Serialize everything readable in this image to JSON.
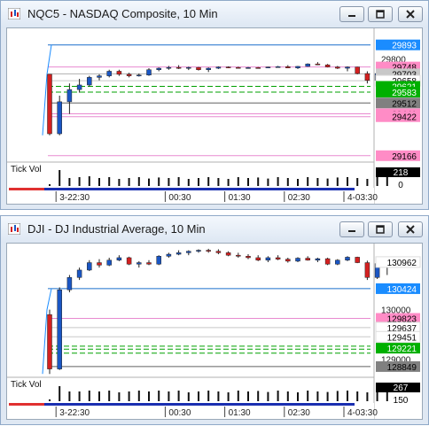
{
  "colors": {
    "candle_up": "#1a56c4",
    "candle_down": "#d42020",
    "highlight_blue": "#1a8cff",
    "highlight_pink": "#ff8cc6",
    "highlight_gray": "#c8c8c8",
    "highlight_green": "#00b000",
    "highlight_darkgray": "#808080"
  },
  "window_buttons": {
    "minimize": "minimize-icon",
    "maximize": "maximize-icon",
    "close": "close-icon"
  },
  "charts": [
    {
      "title": "NQC5 - NASDAQ Composite, 10 Min",
      "price_scale": {
        "min": 29130,
        "max": 29990
      },
      "axis_labels": [
        {
          "value": 29800,
          "text": "29800"
        }
      ],
      "price_tags": [
        {
          "value": 29893,
          "text": "29893",
          "bg": "#1a8cff",
          "fg": "#ffffff"
        },
        {
          "value": 29748,
          "text": "29748",
          "bg": "#ff8cc6",
          "fg": "#000000"
        },
        {
          "value": 29703,
          "text": "29703",
          "bg": "#c8c8c8",
          "fg": "#000000"
        },
        {
          "value": 29658,
          "text": "29658",
          "bg": "#ffffff",
          "fg": "#000000"
        },
        {
          "value": 29621,
          "text": "29621",
          "bg": "#00b000",
          "fg": "#ffffff"
        },
        {
          "value": 29583,
          "text": "29583",
          "bg": "#00b000",
          "fg": "#ffffff"
        },
        {
          "value": 29512,
          "text": "29512",
          "bg": "#808080",
          "fg": "#000000"
        },
        {
          "value": 29441,
          "text": "29441",
          "bg": "#ff8cc6",
          "fg": "#000000"
        },
        {
          "value": 29422,
          "text": "29422",
          "bg": "#ff8cc6",
          "fg": "#000000"
        },
        {
          "value": 29166,
          "text": "29166",
          "bg": "#ff8cc6",
          "fg": "#000000"
        }
      ],
      "h_lines": [
        {
          "value": 29893,
          "color": "#1a6fcc"
        },
        {
          "value": 29748,
          "color": "#e88ad0"
        },
        {
          "value": 29703,
          "color": "#b0b0b0"
        },
        {
          "value": 29658,
          "color": "#c8c8c8"
        },
        {
          "value": 29621,
          "color": "#00a000",
          "dash": true
        },
        {
          "value": 29583,
          "color": "#00a000",
          "dash": true
        },
        {
          "value": 29512,
          "color": "#606060"
        },
        {
          "value": 29441,
          "color": "#e88ad0"
        },
        {
          "value": 29422,
          "color": "#e88ad0"
        },
        {
          "value": 29166,
          "color": "#e88ad0"
        }
      ],
      "candles": [
        [
          29700,
          29700,
          29300,
          29310
        ],
        [
          29310,
          29560,
          29300,
          29520
        ],
        [
          29520,
          29640,
          29440,
          29600
        ],
        [
          29600,
          29670,
          29580,
          29630
        ],
        [
          29630,
          29690,
          29620,
          29680
        ],
        [
          29680,
          29700,
          29660,
          29690
        ],
        [
          29690,
          29730,
          29680,
          29720
        ],
        [
          29720,
          29730,
          29690,
          29700
        ],
        [
          29700,
          29710,
          29680,
          29690
        ],
        [
          29690,
          29705,
          29685,
          29695
        ],
        [
          29695,
          29740,
          29690,
          29730
        ],
        [
          29730,
          29745,
          29720,
          29740
        ],
        [
          29740,
          29755,
          29730,
          29745
        ],
        [
          29745,
          29760,
          29735,
          29740
        ],
        [
          29740,
          29750,
          29728,
          29745
        ],
        [
          29745,
          29748,
          29725,
          29730
        ],
        [
          29730,
          29745,
          29715,
          29740
        ],
        [
          29740,
          29752,
          29735,
          29748
        ],
        [
          29748,
          29752,
          29740,
          29745
        ],
        [
          29745,
          29750,
          29740,
          29742
        ],
        [
          29742,
          29748,
          29738,
          29744
        ],
        [
          29744,
          29748,
          29740,
          29742
        ],
        [
          29742,
          29750,
          29740,
          29748
        ],
        [
          29748,
          29755,
          29745,
          29750
        ],
        [
          29750,
          29760,
          29740,
          29742
        ],
        [
          29742,
          29755,
          29735,
          29752
        ],
        [
          29752,
          29772,
          29750,
          29768
        ],
        [
          29768,
          29780,
          29760,
          29762
        ],
        [
          29762,
          29768,
          29745,
          29748
        ],
        [
          29748,
          29755,
          29735,
          29740
        ],
        [
          29740,
          29752,
          29720,
          29748
        ],
        [
          29748,
          29750,
          29700,
          29705
        ],
        [
          29705,
          29720,
          29640,
          29660
        ],
        [
          29660,
          29710,
          29655,
          29705
        ],
        [
          29705,
          29720,
          29660,
          29670
        ]
      ],
      "volume_label": "Tick Vol",
      "volume_tags": [
        {
          "text": "218",
          "bg": "#000000",
          "fg": "#ffffff"
        },
        {
          "text": "0",
          "bg": "#ffffff",
          "fg": "#000000"
        }
      ],
      "volume": [
        0.1,
        0.9,
        0.45,
        0.5,
        0.55,
        0.45,
        0.5,
        0.4,
        0.45,
        0.5,
        0.42,
        0.48,
        0.45,
        0.5,
        0.4,
        0.45,
        0.5,
        0.45,
        0.4,
        0.5,
        0.45,
        0.48,
        0.42,
        0.5,
        0.45,
        0.4,
        0.5,
        0.45,
        0.42,
        0.48,
        0.5,
        0.45,
        0.4,
        0.5,
        0.75
      ],
      "time_labels": [
        {
          "idx": 1,
          "text": "3-22:30"
        },
        {
          "idx": 12,
          "text": "00:30"
        },
        {
          "idx": 18,
          "text": "01:30"
        },
        {
          "idx": 24,
          "text": "02:30"
        },
        {
          "idx": 30,
          "text": "4-03:30"
        }
      ]
    },
    {
      "title": "DJI - DJ Industrial Average, 10 Min",
      "price_scale": {
        "min": 128650,
        "max": 131300
      },
      "axis_labels": [
        {
          "value": 130000,
          "text": "130000"
        },
        {
          "value": 129000,
          "text": "129000"
        }
      ],
      "price_tags": [
        {
          "value": 130962,
          "text": "130962",
          "bg": "#ffffff",
          "fg": "#000000"
        },
        {
          "value": 130424,
          "text": "130424",
          "bg": "#1a8cff",
          "fg": "#ffffff"
        },
        {
          "value": 129823,
          "text": "129823",
          "bg": "#ff8cc6",
          "fg": "#000000"
        },
        {
          "value": 129637,
          "text": "129637",
          "bg": "#ffffff",
          "fg": "#000000"
        },
        {
          "value": 129451,
          "text": "129451",
          "bg": "#ffffff",
          "fg": "#000000"
        },
        {
          "value": 129221,
          "text": "129221",
          "bg": "#00b000",
          "fg": "#ffffff"
        },
        {
          "value": 128849,
          "text": "128849",
          "bg": "#808080",
          "fg": "#000000"
        }
      ],
      "h_lines": [
        {
          "value": 130424,
          "color": "#1a6fcc"
        },
        {
          "value": 129823,
          "color": "#e88ad0"
        },
        {
          "value": 129637,
          "color": "#c8c8c8"
        },
        {
          "value": 129451,
          "color": "#c8c8c8"
        },
        {
          "value": 129260,
          "color": "#00a000",
          "dash": true
        },
        {
          "value": 129200,
          "color": "#00a000",
          "dash": true
        },
        {
          "value": 129120,
          "color": "#00a000",
          "dash": true
        },
        {
          "value": 128849,
          "color": "#606060"
        }
      ],
      "candles": [
        [
          129900,
          130000,
          128700,
          128800
        ],
        [
          128800,
          130450,
          128780,
          130400
        ],
        [
          130400,
          130700,
          130350,
          130650
        ],
        [
          130650,
          130850,
          130600,
          130800
        ],
        [
          130800,
          131000,
          130780,
          130950
        ],
        [
          130950,
          131020,
          130850,
          130900
        ],
        [
          130900,
          131050,
          130880,
          131000
        ],
        [
          131000,
          131100,
          130980,
          131050
        ],
        [
          131050,
          131070,
          130900,
          130920
        ],
        [
          130920,
          130980,
          130850,
          130950
        ],
        [
          130950,
          131000,
          130900,
          130920
        ],
        [
          130920,
          131100,
          130900,
          131080
        ],
        [
          131080,
          131150,
          131050,
          131120
        ],
        [
          131120,
          131200,
          131100,
          131150
        ],
        [
          131150,
          131200,
          131100,
          131180
        ],
        [
          131180,
          131220,
          131150,
          131200
        ],
        [
          131200,
          131230,
          131150,
          131180
        ],
        [
          131180,
          131220,
          131120,
          131150
        ],
        [
          131150,
          131180,
          131080,
          131100
        ],
        [
          131100,
          131150,
          131050,
          131080
        ],
        [
          131080,
          131120,
          131020,
          131050
        ],
        [
          131050,
          131100,
          130980,
          131000
        ],
        [
          131000,
          131080,
          130960,
          131050
        ],
        [
          131050,
          131100,
          131000,
          131020
        ],
        [
          131020,
          131050,
          130950,
          130980
        ],
        [
          130980,
          131060,
          130960,
          131040
        ],
        [
          131040,
          131080,
          130990,
          131000
        ],
        [
          131000,
          131050,
          130960,
          131030
        ],
        [
          131030,
          131050,
          130900,
          130920
        ],
        [
          130920,
          131020,
          130900,
          131000
        ],
        [
          131000,
          131080,
          130980,
          131060
        ],
        [
          131060,
          131070,
          130940,
          130950
        ],
        [
          130950,
          130990,
          130600,
          130650
        ],
        [
          130650,
          130962,
          130620,
          130930
        ],
        [
          130930,
          130970,
          130700,
          130960
        ]
      ],
      "volume_label": "Tick Vol",
      "volume_tags": [
        {
          "text": "267",
          "bg": "#000000",
          "fg": "#ffffff"
        },
        {
          "text": "150",
          "bg": "#ffffff",
          "fg": "#000000"
        }
      ],
      "volume": [
        0.1,
        0.85,
        0.55,
        0.55,
        0.6,
        0.55,
        0.6,
        0.5,
        0.55,
        0.6,
        0.55,
        0.6,
        0.55,
        0.6,
        0.5,
        0.55,
        0.6,
        0.55,
        0.5,
        0.6,
        0.55,
        0.58,
        0.52,
        0.6,
        0.55,
        0.5,
        0.6,
        0.55,
        0.52,
        0.58,
        0.6,
        0.55,
        0.5,
        0.6,
        0.7
      ],
      "time_labels": [
        {
          "idx": 1,
          "text": "3-22:30"
        },
        {
          "idx": 12,
          "text": "00:30"
        },
        {
          "idx": 18,
          "text": "01:30"
        },
        {
          "idx": 24,
          "text": "02:30"
        },
        {
          "idx": 30,
          "text": "4-03:30"
        }
      ]
    }
  ]
}
